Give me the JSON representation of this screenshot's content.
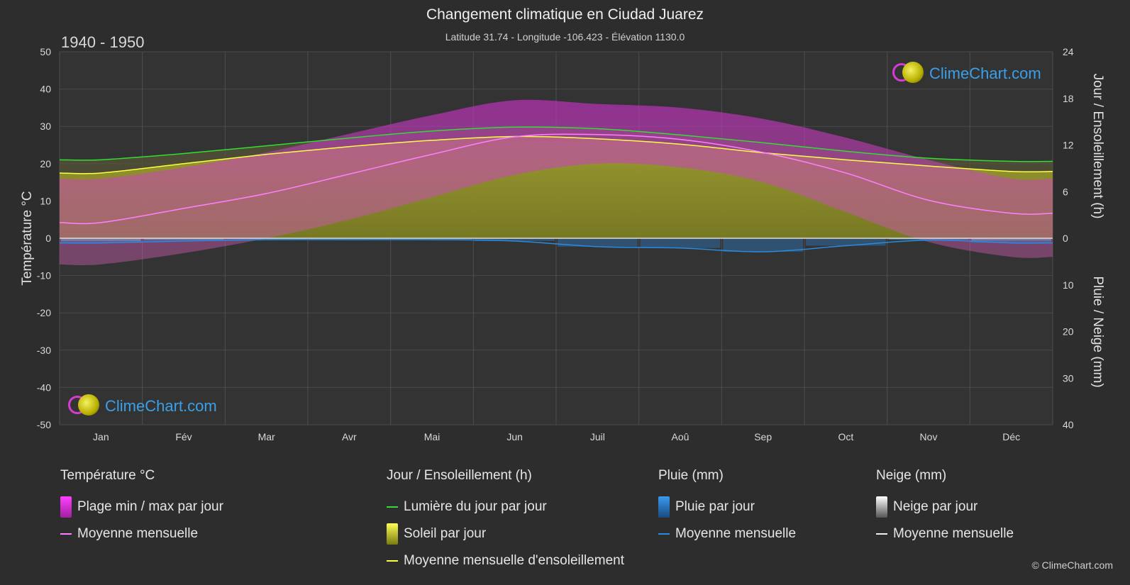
{
  "header": {
    "title": "Changement climatique en Ciudad Juarez",
    "subtitle": "Latitude 31.74 - Longitude -106.423 - Élévation 1130.0",
    "period": "1940 - 1950"
  },
  "logo_text": "ClimeChart.com",
  "copyright": "© ClimeChart.com",
  "axes": {
    "left_label": "Température °C",
    "right_top_label": "Jour / Ensoleillement (h)",
    "right_bottom_label": "Pluie / Neige (mm)",
    "left_ticks": [
      "50",
      "40",
      "30",
      "20",
      "10",
      "0",
      "-10",
      "-20",
      "-30",
      "-40",
      "-50"
    ],
    "right_top_ticks": [
      "24",
      "18",
      "12",
      "6",
      "0"
    ],
    "right_bottom_ticks": [
      "10",
      "20",
      "30",
      "40"
    ]
  },
  "legend": {
    "temp": {
      "header": "Température °C",
      "range": "Plage min / max par jour",
      "mean": "Moyenne mensuelle"
    },
    "sun": {
      "header": "Jour / Ensoleillement (h)",
      "daylight": "Lumière du jour par jour",
      "sunshine": "Soleil par jour",
      "sun_mean": "Moyenne mensuelle d'ensoleillement"
    },
    "rain": {
      "header": "Pluie (mm)",
      "daily": "Pluie par jour",
      "mean": "Moyenne mensuelle"
    },
    "snow": {
      "header": "Neige (mm)",
      "daily": "Neige par jour",
      "mean": "Moyenne mensuelle"
    }
  },
  "colors": {
    "background": "#2d2d2d",
    "temp_range": "#e040e0",
    "temp_mean": "#ff80ff",
    "daylight": "#33dd33",
    "sunshine": "#b8b820",
    "sun_mean": "#ffff44",
    "rain": "#2a8ae0",
    "snow": "#bbbbbb"
  },
  "chart_data": {
    "type": "area",
    "months": [
      "Jan",
      "Fév",
      "Mar",
      "Avr",
      "Mai",
      "Jun",
      "Juil",
      "Aoû",
      "Sep",
      "Oct",
      "Nov",
      "Déc"
    ],
    "temp_ylim": [
      -50,
      50
    ],
    "sun_ylim": [
      0,
      24
    ],
    "precip_ylim": [
      0,
      40
    ],
    "series": [
      {
        "name": "Lumière du jour par jour",
        "unit": "h",
        "values": [
          10.1,
          10.9,
          11.9,
          12.9,
          13.8,
          14.3,
          14.1,
          13.3,
          12.3,
          11.2,
          10.3,
          9.9
        ]
      },
      {
        "name": "Moyenne mensuelle d'ensoleillement",
        "unit": "h",
        "values": [
          8.4,
          9.6,
          10.8,
          11.8,
          12.6,
          13.1,
          12.8,
          12.1,
          11.0,
          10.1,
          9.3,
          8.6
        ]
      },
      {
        "name": "Moyenne mensuelle",
        "unit": "°C",
        "values": [
          4.2,
          8.0,
          12.0,
          17.2,
          22.5,
          27.2,
          27.8,
          26.5,
          23.0,
          17.5,
          10.2,
          6.7
        ]
      },
      {
        "name": "Température max quotidienne",
        "unit": "°C",
        "values": [
          16,
          19,
          23,
          28,
          33,
          37,
          36,
          35,
          32,
          27,
          21,
          16
        ]
      },
      {
        "name": "Température min quotidienne",
        "unit": "°C",
        "values": [
          -7,
          -4,
          0,
          5,
          11,
          17,
          20,
          19,
          15,
          7,
          -1,
          -5
        ]
      },
      {
        "name": "Pluie moyenne mensuelle",
        "unit": "mm",
        "values": [
          1.0,
          0.6,
          0.3,
          0.3,
          0.3,
          0.6,
          1.8,
          2.1,
          2.9,
          1.6,
          0.4,
          1.0
        ]
      },
      {
        "name": "Neige moyenne mensuelle",
        "unit": "mm",
        "values": [
          0.6,
          0.3,
          0.1,
          0.0,
          0.0,
          0.0,
          0.0,
          0.0,
          0.0,
          0.0,
          0.2,
          0.5
        ]
      }
    ]
  }
}
